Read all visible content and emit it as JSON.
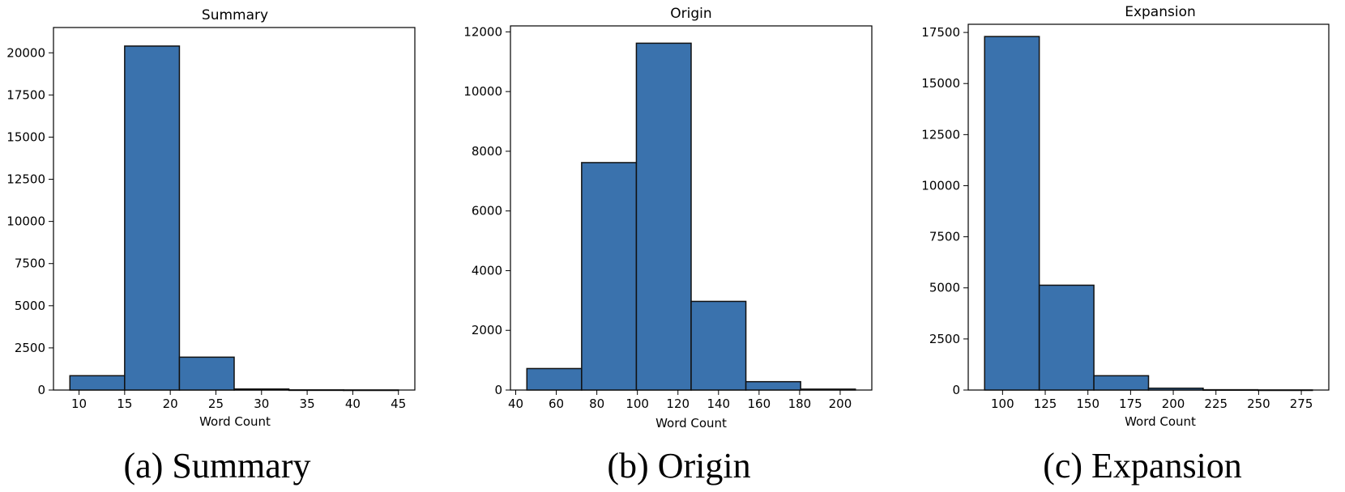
{
  "colors": {
    "bar_fill": "#3a72ad",
    "bar_edge": "#111111"
  },
  "chart_data": [
    {
      "type": "bar",
      "title": "Summary",
      "xlabel": "Word Count",
      "ylabel": "",
      "caption": "(a) Summary",
      "bin_edges": [
        9,
        15,
        21,
        27,
        33,
        39,
        45
      ],
      "values": [
        850,
        20400,
        1950,
        60,
        10,
        5
      ],
      "xlim": [
        7.2,
        46.8
      ],
      "ylim": [
        0,
        21500
      ],
      "xticks": [
        10,
        15,
        20,
        25,
        30,
        35,
        40,
        45
      ],
      "xtick_labels": [
        "10",
        "15",
        "20",
        "25",
        "30",
        "35",
        "40",
        "45"
      ],
      "yticks": [
        0,
        2500,
        5000,
        7500,
        10000,
        12500,
        15000,
        17500,
        20000
      ],
      "ytick_labels": [
        "0",
        "2500",
        "5000",
        "7500",
        "10000",
        "12500",
        "15000",
        "17500",
        "20000"
      ],
      "grid": false
    },
    {
      "type": "bar",
      "title": "Origin",
      "xlabel": "Word Count",
      "ylabel": "",
      "caption": "(b) Origin",
      "bin_edges": [
        45.5,
        72.5,
        99.5,
        126.5,
        153.5,
        180.5,
        207.5
      ],
      "values": [
        720,
        7620,
        11620,
        2970,
        280,
        30
      ],
      "xlim": [
        37.4,
        215.6
      ],
      "ylim": [
        0,
        12200
      ],
      "xticks": [
        40,
        60,
        80,
        100,
        120,
        140,
        160,
        180,
        200
      ],
      "xtick_labels": [
        "40",
        "60",
        "80",
        "100",
        "120",
        "140",
        "160",
        "180",
        "200"
      ],
      "yticks": [
        0,
        2000,
        4000,
        6000,
        8000,
        10000,
        12000
      ],
      "ytick_labels": [
        "0",
        "2000",
        "4000",
        "6000",
        "8000",
        "10000",
        "12000"
      ],
      "grid": false
    },
    {
      "type": "bar",
      "title": "Expansion",
      "xlabel": "Word Count",
      "ylabel": "",
      "caption": "(c) Expansion",
      "bin_edges": [
        89.5,
        121.5,
        153.5,
        185.5,
        217.5,
        249.5,
        281.5
      ],
      "values": [
        17300,
        5130,
        700,
        90,
        15,
        5
      ],
      "xlim": [
        79.9,
        291.1
      ],
      "ylim": [
        0,
        17900
      ],
      "xticks": [
        100,
        125,
        150,
        175,
        200,
        225,
        250,
        275
      ],
      "xtick_labels": [
        "100",
        "125",
        "150",
        "175",
        "200",
        "225",
        "250",
        "275"
      ],
      "yticks": [
        0,
        2500,
        5000,
        7500,
        10000,
        12500,
        15000,
        17500
      ],
      "ytick_labels": [
        "0",
        "2500",
        "5000",
        "7500",
        "10000",
        "12500",
        "15000",
        "17500"
      ],
      "grid": false
    }
  ]
}
